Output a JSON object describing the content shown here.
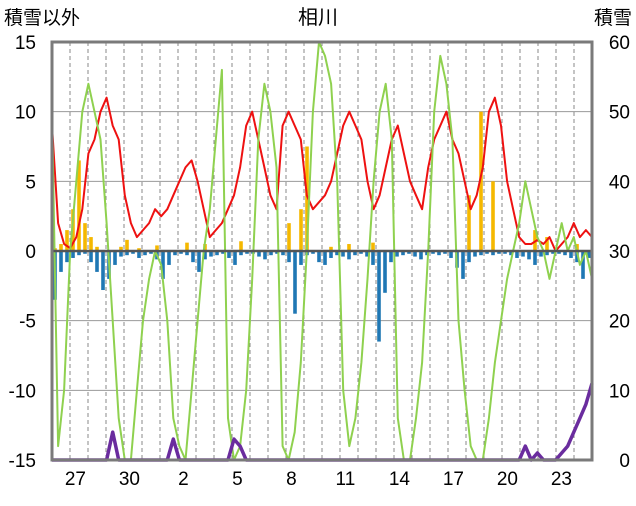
{
  "chart_data": {
    "type": "bar+line",
    "title": "相川",
    "ylabel_left": "積雪以外",
    "ylabel_right": "積雪",
    "ylim_left": [
      -15,
      15
    ],
    "ylim_right": [
      0,
      60
    ],
    "yticks_left": [
      "15",
      "10",
      "5",
      "0",
      "-5",
      "-10",
      "-15"
    ],
    "yticks_right": [
      "60",
      "50",
      "40",
      "30",
      "20",
      "10",
      "0"
    ],
    "x_tick_labels": [
      "27",
      "30",
      "2",
      "5",
      "8",
      "11",
      "14",
      "17",
      "20",
      "23"
    ],
    "x_days_total": 30,
    "x_tick_day_index": [
      2,
      5,
      8,
      11,
      14,
      17,
      20,
      23,
      26,
      29
    ],
    "grid": true,
    "series": [
      {
        "kind": "bar",
        "color": "#f5b800",
        "values_left_axis": [
          0.2,
          0.5,
          1.5,
          3.0,
          6.5,
          2.0,
          1.0,
          0.3,
          0.0,
          0.0,
          0.0,
          0.3,
          0.8,
          0.0,
          0.2,
          0.0,
          0.0,
          0.4,
          0.0,
          0.0,
          0.0,
          0.0,
          0.6,
          0.0,
          0.0,
          0.5,
          0.0,
          0.0,
          0.0,
          0.0,
          0.0,
          0.7,
          0.0,
          0.0,
          0.0,
          0.0,
          0.0,
          0.0,
          0.0,
          2.0,
          0.0,
          3.0,
          7.5,
          0.0,
          0.0,
          0.0,
          0.3,
          0.0,
          0.0,
          0.5,
          0.0,
          0.0,
          0.0,
          0.6,
          0.0,
          0.0,
          0.0,
          0.0,
          0.0,
          0.0,
          0.0,
          0.0,
          0.0,
          0.0,
          0.0,
          0.0,
          0.0,
          0.0,
          0.0,
          4.0,
          0.0,
          10.0,
          0.0,
          5.0,
          0.0,
          0.0,
          0.0,
          0.0,
          0.0,
          0.0,
          1.5,
          0.0,
          1.0,
          0.0,
          0.0,
          0.0,
          0.0,
          0.5,
          0.0,
          0.0
        ]
      },
      {
        "kind": "bar",
        "color": "#1f77b4",
        "values_left_axis": [
          -3.5,
          -1.5,
          -0.8,
          -0.5,
          -0.3,
          -0.2,
          -0.8,
          -1.5,
          -2.8,
          -2.0,
          -1.0,
          -0.4,
          -0.3,
          -0.2,
          -0.5,
          -0.3,
          -0.2,
          -0.6,
          -2.0,
          -1.0,
          -0.3,
          -0.2,
          -0.3,
          -0.8,
          -1.5,
          -0.6,
          -0.4,
          -0.3,
          -0.2,
          -0.5,
          -1.0,
          -0.3,
          -0.2,
          -0.2,
          -0.4,
          -0.6,
          -0.3,
          -0.2,
          -0.3,
          -0.8,
          -4.5,
          -1.0,
          -0.3,
          -0.2,
          -0.8,
          -1.0,
          -0.5,
          -0.3,
          -0.4,
          -0.6,
          -0.3,
          -0.2,
          -0.4,
          -1.0,
          -6.5,
          -3.0,
          -0.8,
          -0.4,
          -0.3,
          -0.2,
          -0.4,
          -0.6,
          -0.3,
          -0.2,
          -0.3,
          -0.2,
          -0.5,
          -1.2,
          -2.0,
          -0.8,
          -0.4,
          -0.3,
          -0.2,
          -0.3,
          -0.2,
          -0.2,
          -0.3,
          -0.5,
          -0.4,
          -0.6,
          -1.0,
          -0.4,
          -0.3,
          -0.2,
          -0.2,
          -0.3,
          -0.5,
          -0.8,
          -2.0,
          -0.5
        ]
      },
      {
        "kind": "line",
        "color": "#ee1111",
        "axis": "left",
        "values": [
          9,
          2,
          0.5,
          0.2,
          1,
          3,
          7,
          8,
          10,
          11,
          9,
          8,
          4,
          2,
          1,
          1.5,
          2,
          3,
          2.5,
          3,
          4,
          5,
          6,
          6.5,
          5,
          3,
          1,
          1.5,
          2,
          3,
          4,
          6,
          9,
          10,
          8,
          6,
          4,
          3,
          9,
          10,
          9,
          8,
          4,
          3,
          3.5,
          4,
          5,
          7,
          9,
          10,
          9,
          8,
          5,
          3,
          4,
          6,
          8,
          9,
          7,
          5,
          4,
          3,
          6,
          8,
          9,
          10,
          8,
          7,
          5,
          3,
          4,
          6,
          10,
          11,
          9,
          5,
          3,
          1,
          0.5,
          0.5,
          0.8,
          0.5,
          1,
          0,
          0.5,
          1,
          2,
          1,
          1.5,
          1
        ]
      },
      {
        "kind": "line",
        "color": "#8fd14f",
        "axis": "left",
        "values": [
          10,
          -14,
          -10,
          0,
          5,
          10,
          12,
          10,
          8,
          2,
          -5,
          -12,
          -15,
          -15,
          -10,
          -5,
          -2,
          0,
          -1,
          -5,
          -12,
          -14,
          -15,
          -10,
          -5,
          0,
          3,
          8,
          13,
          -12,
          -15,
          -14,
          -10,
          -2,
          8,
          12,
          10,
          6,
          -14,
          -15,
          -13,
          -8,
          0,
          10,
          15,
          14,
          12,
          5,
          -10,
          -14,
          -12,
          -8,
          -2,
          5,
          10,
          12,
          8,
          -12,
          -15,
          -15,
          -12,
          -8,
          0,
          10,
          14,
          12,
          8,
          -5,
          -10,
          -14,
          -15,
          -15,
          -12,
          -8,
          -5,
          -2,
          0,
          2,
          5,
          3,
          1,
          0,
          -2,
          0,
          2,
          0,
          1,
          -1,
          0,
          -2
        ]
      },
      {
        "kind": "line",
        "color": "#6a2c9e",
        "axis": "right",
        "values": [
          0,
          0,
          0,
          0,
          0,
          0,
          0,
          0,
          0,
          0,
          4,
          0,
          0,
          0,
          0,
          0,
          0,
          0,
          0,
          0,
          3,
          0,
          0,
          0,
          0,
          0,
          0,
          0,
          0,
          0,
          3,
          2,
          0,
          0,
          0,
          0,
          0,
          0,
          0,
          0,
          0,
          0,
          0,
          0,
          0,
          0,
          0,
          0,
          0,
          0,
          0,
          0,
          0,
          0,
          0,
          0,
          0,
          0,
          0,
          0,
          0,
          0,
          0,
          0,
          0,
          0,
          0,
          0,
          0,
          0,
          0,
          0,
          0,
          0,
          0,
          0,
          0,
          0,
          2,
          0,
          1,
          0,
          0,
          0,
          1,
          2,
          4,
          6,
          8,
          11
        ]
      }
    ]
  }
}
